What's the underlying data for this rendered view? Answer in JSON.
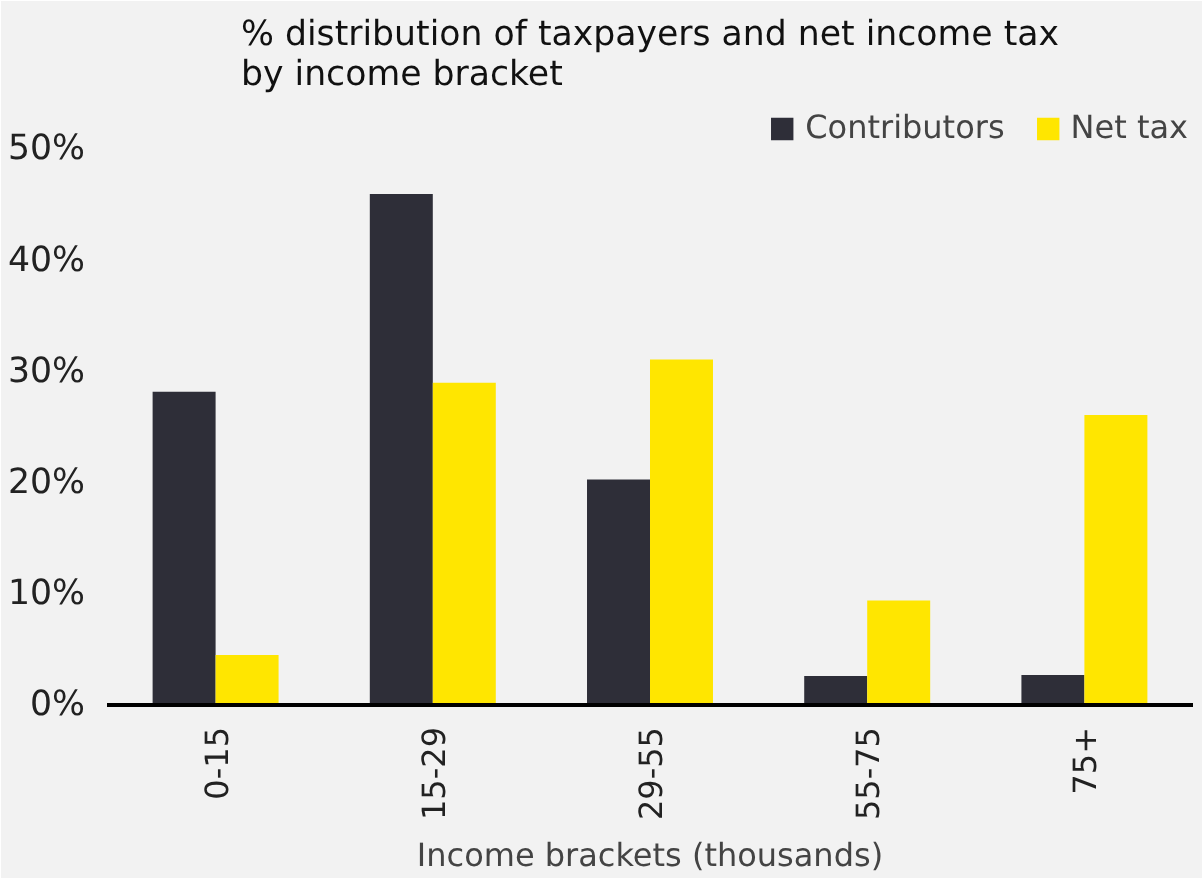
{
  "chart_data": {
    "type": "bar",
    "title": "% distribution of taxpayers and net income tax\nby income bracket",
    "xlabel": "Income brackets (thousands)",
    "categories": [
      "0-15",
      "15-29",
      "29-55",
      "55-75",
      "75+"
    ],
    "series": [
      {
        "name": "Contributors",
        "color": "#2e2e38",
        "values": [
          28.2,
          46.0,
          20.3,
          2.6,
          2.7
        ]
      },
      {
        "name": "Net tax",
        "color": "#ffe600",
        "values": [
          4.5,
          29.0,
          31.1,
          9.4,
          26.1
        ]
      }
    ],
    "ylim": [
      0,
      54
    ],
    "yticks": [
      {
        "value": 0,
        "label": "0%"
      },
      {
        "value": 10,
        "label": "10%"
      },
      {
        "value": 20,
        "label": "20%"
      },
      {
        "value": 30,
        "label": "30%"
      },
      {
        "value": 40,
        "label": "40%"
      },
      {
        "value": 50,
        "label": "50%"
      }
    ],
    "grid": false,
    "legend": "top right"
  }
}
